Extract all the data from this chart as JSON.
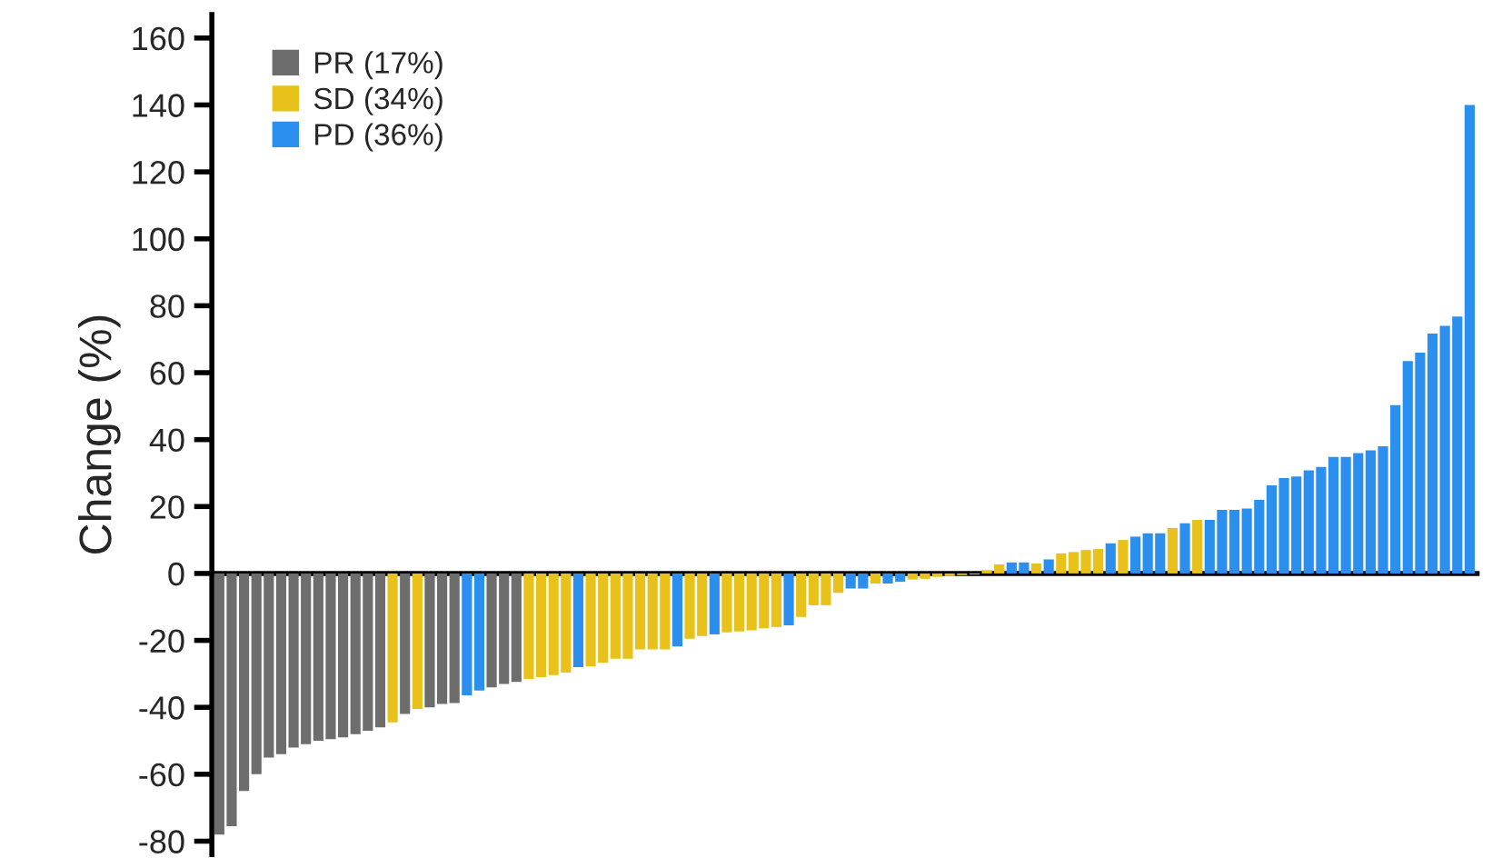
{
  "chart_data": {
    "type": "bar",
    "ylabel": "Change (%)",
    "categories": [
      null,
      null,
      null,
      null,
      null,
      null,
      null,
      null,
      null,
      null,
      null,
      null,
      null,
      null,
      null,
      null,
      null,
      null,
      null,
      null,
      null,
      null,
      null,
      null,
      null,
      null,
      null,
      null,
      null,
      null,
      null,
      null,
      null,
      null,
      null,
      null,
      null,
      null,
      null,
      null,
      null,
      null,
      null,
      null,
      null,
      null,
      null,
      null,
      null,
      null,
      null,
      null,
      null,
      null,
      null,
      null,
      null,
      null,
      null,
      null,
      null,
      null,
      null,
      null,
      null,
      null,
      null,
      null,
      null,
      null,
      null,
      null,
      null,
      null,
      null,
      null,
      null,
      null,
      null,
      null,
      null,
      null,
      null,
      null,
      null,
      null,
      null,
      null,
      null,
      null,
      null,
      null,
      null,
      null,
      null,
      null,
      null,
      null,
      null,
      null,
      null,
      null
    ],
    "series": [
      {
        "name": "PR (17%)",
        "color": "#6d6d6d",
        "values": [
          -78,
          -75.5,
          -65,
          -60,
          -55,
          -54,
          -52,
          -51,
          -50,
          -49.5,
          -49,
          -48,
          -47,
          -46,
          null,
          -42,
          null,
          -40,
          -39,
          -38.7,
          null,
          null,
          -34,
          -33,
          -32.4,
          null,
          null,
          null,
          null,
          null,
          null,
          null,
          null,
          null,
          null,
          null,
          null,
          null,
          null,
          null,
          null,
          null,
          null,
          null,
          null,
          null,
          null,
          null,
          null,
          null,
          null,
          null,
          null,
          null,
          null,
          null,
          null,
          null,
          null,
          null,
          null,
          null,
          null,
          null,
          null,
          null,
          null,
          null,
          null,
          null,
          null,
          null,
          null,
          null,
          null,
          null,
          null,
          null,
          null,
          null,
          null,
          null,
          null,
          null,
          null,
          null,
          null,
          null,
          null,
          null,
          null,
          null,
          null,
          null,
          null,
          null,
          null,
          null,
          null,
          null,
          null,
          null
        ]
      },
      {
        "name": "SD (34%)",
        "color": "#e8c21a",
        "values": [
          null,
          null,
          null,
          null,
          null,
          null,
          null,
          null,
          null,
          null,
          null,
          null,
          null,
          null,
          -44.5,
          null,
          -40.5,
          null,
          null,
          null,
          null,
          null,
          null,
          null,
          null,
          -31.5,
          -31,
          -30.4,
          -29.6,
          null,
          -27.8,
          -26.7,
          -25.5,
          -25.5,
          -22.7,
          -22.7,
          -22.7,
          null,
          -19.5,
          -18.7,
          null,
          -17.6,
          -17.3,
          -17,
          -16.4,
          -16,
          null,
          -13,
          -9.5,
          -9.5,
          -5.8,
          null,
          null,
          -3,
          null,
          null,
          -1.8,
          -1.6,
          -1,
          -0.8,
          -0.5,
          -0.3,
          1,
          2.7,
          null,
          null,
          3,
          null,
          6,
          6.4,
          7,
          7.3,
          null,
          10,
          null,
          null,
          null,
          13.6,
          null,
          16,
          null,
          null,
          null,
          null,
          null,
          null,
          null,
          null,
          null,
          null,
          null,
          null,
          null,
          null,
          null,
          null,
          null,
          null,
          null,
          null,
          null,
          null
        ]
      },
      {
        "name": "PD (36%)",
        "color": "#2b8ff0",
        "values": [
          null,
          null,
          null,
          null,
          null,
          null,
          null,
          null,
          null,
          null,
          null,
          null,
          null,
          null,
          null,
          null,
          null,
          null,
          null,
          null,
          -36.4,
          -35,
          null,
          null,
          null,
          null,
          null,
          null,
          null,
          -28,
          null,
          null,
          null,
          null,
          null,
          null,
          null,
          -21.8,
          null,
          null,
          -18.2,
          null,
          null,
          null,
          null,
          null,
          -15.5,
          null,
          null,
          null,
          null,
          -4.5,
          -4.5,
          null,
          -3,
          -2.5,
          null,
          null,
          null,
          null,
          null,
          null,
          null,
          null,
          3.3,
          3.3,
          null,
          4.2,
          null,
          null,
          null,
          null,
          9,
          null,
          11,
          12,
          12,
          null,
          15,
          null,
          16,
          19,
          19,
          19.4,
          22,
          26.3,
          28.5,
          29,
          30.8,
          31.8,
          34.8,
          34.8,
          36,
          36.8,
          38,
          50.3,
          63.5,
          66,
          71.7,
          74,
          76.8,
          140
        ]
      }
    ],
    "ylim": [
      -84,
      167
    ],
    "yticks": [
      -80,
      -60,
      -40,
      -20,
      0,
      20,
      40,
      60,
      80,
      100,
      120,
      140,
      160
    ],
    "legend": "top left"
  }
}
